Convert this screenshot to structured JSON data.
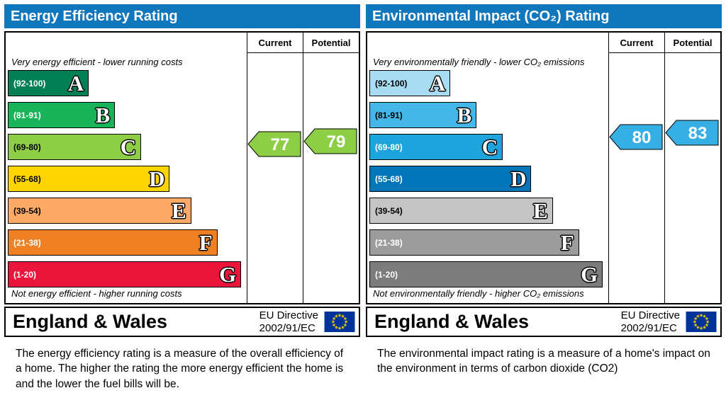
{
  "chart_data": [
    {
      "type": "bar",
      "title": "Energy Efficiency Rating",
      "bands": [
        {
          "letter": "A",
          "range": [
            92,
            100
          ],
          "bar_length_pct": 34
        },
        {
          "letter": "B",
          "range": [
            81,
            91
          ],
          "bar_length_pct": 45
        },
        {
          "letter": "C",
          "range": [
            69,
            80
          ],
          "bar_length_pct": 56
        },
        {
          "letter": "D",
          "range": [
            55,
            68
          ],
          "bar_length_pct": 68
        },
        {
          "letter": "E",
          "range": [
            39,
            54
          ],
          "bar_length_pct": 77
        },
        {
          "letter": "F",
          "range": [
            21,
            38
          ],
          "bar_length_pct": 88
        },
        {
          "letter": "G",
          "range": [
            1,
            20
          ],
          "bar_length_pct": 98
        }
      ],
      "current": 77,
      "potential": 79,
      "annotations": [
        "Very energy efficient - lower running costs",
        "Not energy efficient - higher running costs"
      ]
    },
    {
      "type": "bar",
      "title": "Environmental Impact (CO₂) Rating",
      "bands": [
        {
          "letter": "A",
          "range": [
            92,
            100
          ],
          "bar_length_pct": 34
        },
        {
          "letter": "B",
          "range": [
            81,
            91
          ],
          "bar_length_pct": 45
        },
        {
          "letter": "C",
          "range": [
            69,
            80
          ],
          "bar_length_pct": 56
        },
        {
          "letter": "D",
          "range": [
            55,
            68
          ],
          "bar_length_pct": 68
        },
        {
          "letter": "E",
          "range": [
            39,
            54
          ],
          "bar_length_pct": 77
        },
        {
          "letter": "F",
          "range": [
            21,
            38
          ],
          "bar_length_pct": 88
        },
        {
          "letter": "G",
          "range": [
            1,
            20
          ],
          "bar_length_pct": 98
        }
      ],
      "current": 80,
      "potential": 83,
      "annotations": [
        "Very environmentally friendly - lower CO₂ emissions",
        "Not environmentally friendly - higher CO₂ emissions"
      ]
    }
  ],
  "left": {
    "title": "Energy Efficiency Rating",
    "header": {
      "current": "Current",
      "potential": "Potential"
    },
    "top_note": "Very energy efficient - lower running costs",
    "bottom_note": "Not energy efficient - higher running costs",
    "bands": [
      {
        "range": "(92-100)",
        "letter": "A",
        "color": "#008054",
        "text_color": "#ffffff",
        "width_pct": 34
      },
      {
        "range": "(81-91)",
        "letter": "B",
        "color": "#19b459",
        "text_color": "#ffffff",
        "width_pct": 45
      },
      {
        "range": "(69-80)",
        "letter": "C",
        "color": "#8dce46",
        "text_color": "#000000",
        "width_pct": 56
      },
      {
        "range": "(55-68)",
        "letter": "D",
        "color": "#ffd500",
        "text_color": "#000000",
        "width_pct": 68
      },
      {
        "range": "(39-54)",
        "letter": "E",
        "color": "#fcaa65",
        "text_color": "#000000",
        "width_pct": 77
      },
      {
        "range": "(21-38)",
        "letter": "F",
        "color": "#ef8023",
        "text_color": "#ffffff",
        "width_pct": 88
      },
      {
        "range": "(1-20)",
        "letter": "G",
        "color": "#e9153b",
        "text_color": "#ffffff",
        "width_pct": 98
      }
    ],
    "current": {
      "value": "77",
      "color": "#8dce46",
      "row_pos": 1.9
    },
    "potential": {
      "value": "79",
      "color": "#8dce46",
      "row_pos": 1.82
    },
    "footer": {
      "region": "England & Wales",
      "directive_line1": "EU Directive",
      "directive_line2": "2002/91/EC"
    },
    "caption": "The energy efficiency rating is a measure of the overall efficiency of a home.  The higher the rating the more energy efficient the home is and the lower the fuel bills will be."
  },
  "right": {
    "title": "Environmental Impact (CO₂) Rating",
    "header": {
      "current": "Current",
      "potential": "Potential"
    },
    "top_note": "Very environmentally friendly - lower CO₂ emissions",
    "bottom_note": "Not environmentally friendly - higher CO₂ emissions",
    "bands": [
      {
        "range": "(92-100)",
        "letter": "A",
        "color": "#a8dcf3",
        "text_color": "#000000",
        "width_pct": 34
      },
      {
        "range": "(81-91)",
        "letter": "B",
        "color": "#45b6e8",
        "text_color": "#000000",
        "width_pct": 45
      },
      {
        "range": "(69-80)",
        "letter": "C",
        "color": "#1ea3dc",
        "text_color": "#ffffff",
        "width_pct": 56
      },
      {
        "range": "(55-68)",
        "letter": "D",
        "color": "#0075b8",
        "text_color": "#ffffff",
        "width_pct": 68
      },
      {
        "range": "(39-54)",
        "letter": "E",
        "color": "#c5c5c5",
        "text_color": "#000000",
        "width_pct": 77
      },
      {
        "range": "(21-38)",
        "letter": "F",
        "color": "#9c9c9c",
        "text_color": "#ffffff",
        "width_pct": 88
      },
      {
        "range": "(1-20)",
        "letter": "G",
        "color": "#7c7c7c",
        "text_color": "#ffffff",
        "width_pct": 98
      }
    ],
    "current": {
      "value": "80",
      "color": "#36b0e4",
      "row_pos": 1.68
    },
    "potential": {
      "value": "83",
      "color": "#36b0e4",
      "row_pos": 1.55
    },
    "footer": {
      "region": "England & Wales",
      "directive_line1": "EU Directive",
      "directive_line2": "2002/91/EC"
    },
    "caption": "The environmental impact rating is a measure of a home's impact on the environment in terms of carbon dioxide (CO2)"
  }
}
